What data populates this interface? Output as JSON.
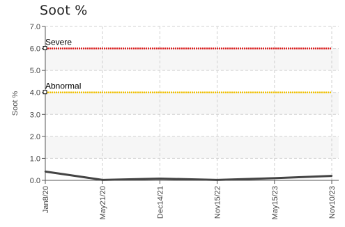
{
  "chart_data": {
    "type": "line",
    "title": "Soot %",
    "xlabel": "",
    "ylabel": "Soot %",
    "ylim": [
      0,
      7
    ],
    "yticks": [
      "0.0",
      "1.0",
      "2.0",
      "3.0",
      "4.0",
      "5.0",
      "6.0",
      "7.0"
    ],
    "categories": [
      "Jan8/20",
      "May21/20",
      "Dec14/21",
      "Nov15/22",
      "May15/23",
      "Nov10/23"
    ],
    "grid": true,
    "series": [
      {
        "values": [
          0.4,
          0.02,
          0.08,
          0.02,
          0.1,
          0.2
        ]
      }
    ],
    "thresholds": [
      {
        "name": "Severe",
        "value": 6.0,
        "color": "#dd1a1a"
      },
      {
        "name": "Abnormal",
        "value": 4.0,
        "color": "#f2c200"
      }
    ],
    "line_color": "#444444"
  }
}
